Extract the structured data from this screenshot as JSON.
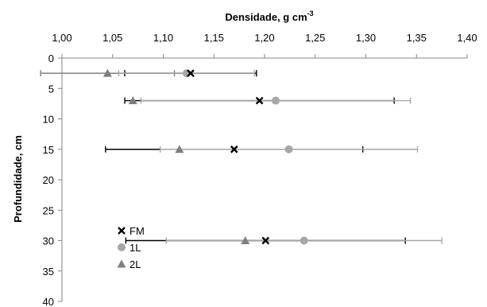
{
  "chart_data": {
    "type": "scatter",
    "title": "",
    "xlabel": "Densidade, g cm",
    "xlabel_sup": "-3",
    "ylabel": "Profundidade, cm",
    "xlim": [
      1.0,
      1.4
    ],
    "ylim": [
      0,
      40
    ],
    "x_axis_position": "top",
    "y_axis_inverted": true,
    "grid": false,
    "x_ticks": [
      "1,00",
      "1,05",
      "1,10",
      "1,15",
      "1,20",
      "1,25",
      "1,30",
      "1,35",
      "1,40"
    ],
    "y_ticks": [
      "0",
      "5",
      "10",
      "15",
      "20",
      "25",
      "30",
      "35",
      "40"
    ],
    "legend_position": "bottom-left",
    "series": [
      {
        "name": "FM",
        "marker": "x",
        "color": "#000000",
        "points": [
          {
            "x": 1.127,
            "y": 2.5,
            "err": 0.065
          },
          {
            "x": 1.195,
            "y": 7,
            "err": 0.133
          },
          {
            "x": 1.17,
            "y": 15,
            "err": 0.127
          },
          {
            "x": 1.201,
            "y": 30,
            "err": 0.138
          }
        ]
      },
      {
        "name": "1L",
        "marker": "circle",
        "color": "#a6a6a6",
        "points": [
          {
            "x": 1.123,
            "y": 2.5,
            "err": 0.067
          },
          {
            "x": 1.211,
            "y": 7,
            "err": 0.133
          },
          {
            "x": 1.224,
            "y": 15,
            "err": 0.127
          },
          {
            "x": 1.239,
            "y": 30,
            "err": 0.136
          }
        ]
      },
      {
        "name": "2L",
        "marker": "triangle",
        "color": "#7f7f7f",
        "points": [
          {
            "x": 1.045,
            "y": 2.5,
            "err": 0.066
          },
          {
            "x": 1.07,
            "y": 7,
            "err": 0.0
          },
          {
            "x": 1.116,
            "y": 15,
            "err": 0.0
          },
          {
            "x": 1.181,
            "y": 30,
            "err": 0.0
          }
        ]
      }
    ]
  }
}
